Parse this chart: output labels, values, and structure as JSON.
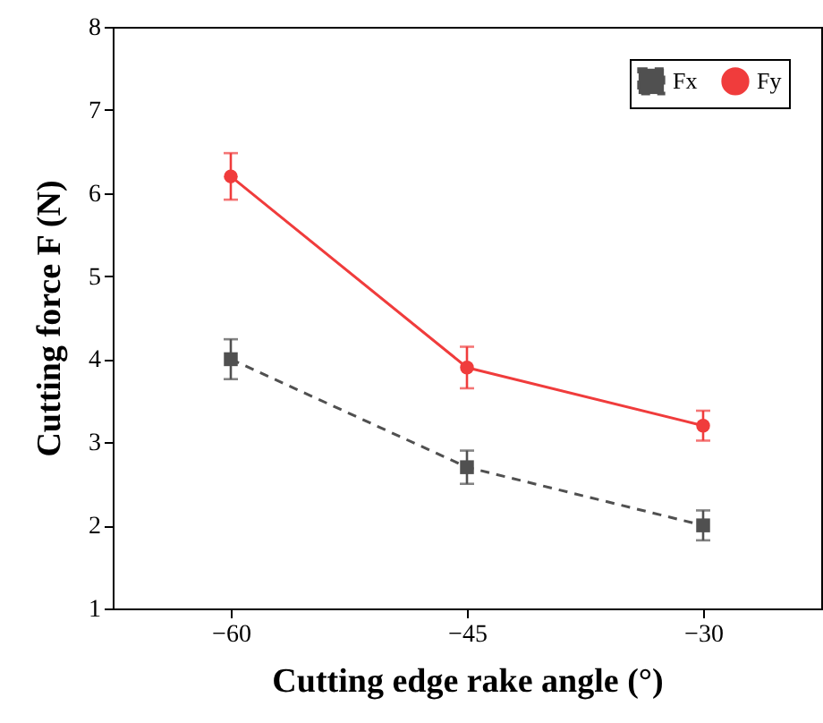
{
  "chart_data": {
    "type": "line",
    "xlabel": "Cutting edge rake angle (°)",
    "ylabel": "Cutting force F (N)",
    "x": [
      -60,
      -45,
      -30
    ],
    "xlim": [
      -67.5,
      -22.5
    ],
    "xticks": [
      -60,
      -45,
      -30
    ],
    "ylim": [
      1,
      8
    ],
    "yticks": [
      1,
      2,
      3,
      4,
      5,
      6,
      7,
      8
    ],
    "grid": false,
    "legend": "top right",
    "series": [
      {
        "name": "Fx",
        "color": "#505050",
        "values": [
          4.0,
          2.7,
          2.0
        ],
        "errors": [
          0.24,
          0.2,
          0.18
        ],
        "marker": "square",
        "line_style": "dashed"
      },
      {
        "name": "Fy",
        "color": "#f03c3c",
        "values": [
          6.2,
          3.9,
          3.2
        ],
        "errors": [
          0.28,
          0.25,
          0.18
        ],
        "marker": "circle",
        "line_style": "solid"
      }
    ]
  }
}
